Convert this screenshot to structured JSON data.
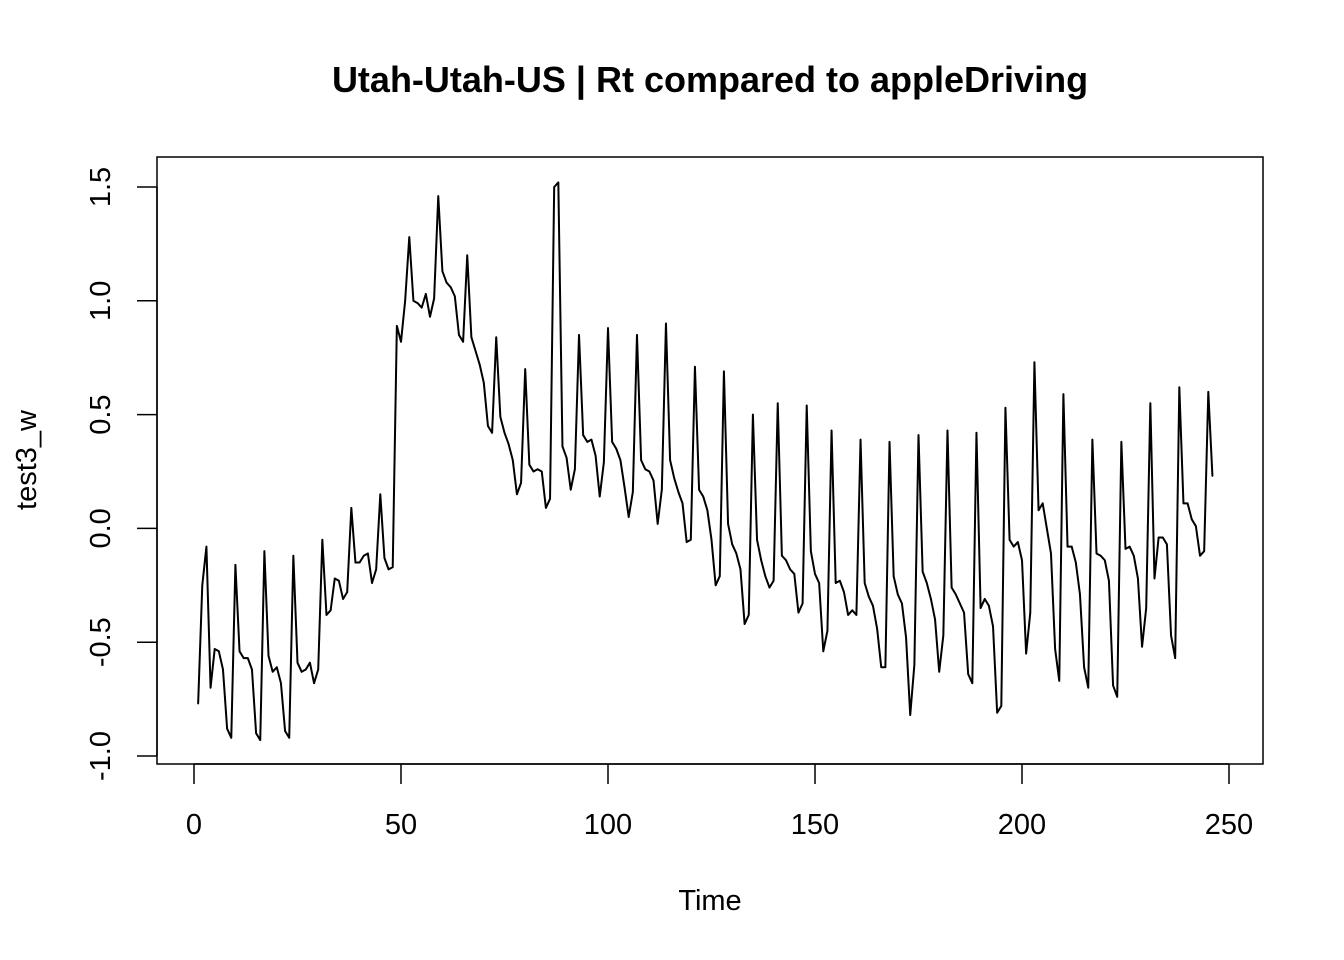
{
  "chart_data": {
    "type": "line",
    "title": "Utah-Utah-US | Rt compared to appleDriving",
    "xlabel": "Time",
    "ylabel": "test3_w",
    "xlim": [
      0,
      250
    ],
    "ylim": [
      -1.0,
      1.5
    ],
    "x_ticks": [
      0,
      50,
      100,
      150,
      200,
      250
    ],
    "x_tick_labels": [
      "0",
      "50",
      "100",
      "150",
      "200",
      "250"
    ],
    "y_ticks": [
      -1.0,
      -0.5,
      0.0,
      0.5,
      1.0,
      1.5
    ],
    "y_tick_labels": [
      "-1.0",
      "-0.5",
      "0.0",
      "0.5",
      "1.0",
      "1.5"
    ],
    "grid": false,
    "series": [
      {
        "name": "test3_w",
        "color": "#000000",
        "x_start": 1,
        "values": [
          -0.77,
          -0.25,
          -0.08,
          -0.7,
          -0.53,
          -0.54,
          -0.62,
          -0.88,
          -0.92,
          -0.16,
          -0.54,
          -0.57,
          -0.57,
          -0.62,
          -0.9,
          -0.93,
          -0.1,
          -0.56,
          -0.63,
          -0.61,
          -0.68,
          -0.89,
          -0.92,
          -0.12,
          -0.59,
          -0.63,
          -0.62,
          -0.59,
          -0.68,
          -0.62,
          -0.05,
          -0.38,
          -0.36,
          -0.22,
          -0.23,
          -0.31,
          -0.28,
          0.09,
          -0.15,
          -0.15,
          -0.12,
          -0.11,
          -0.24,
          -0.18,
          0.15,
          -0.13,
          -0.18,
          -0.17,
          0.89,
          0.82,
          1.0,
          1.28,
          1.0,
          0.99,
          0.97,
          1.03,
          0.93,
          1.01,
          1.46,
          1.13,
          1.08,
          1.06,
          1.02,
          0.85,
          0.82,
          1.2,
          0.84,
          0.78,
          0.72,
          0.64,
          0.45,
          0.42,
          0.84,
          0.49,
          0.42,
          0.37,
          0.3,
          0.15,
          0.2,
          0.7,
          0.28,
          0.25,
          0.26,
          0.25,
          0.09,
          0.13,
          1.5,
          1.52,
          0.36,
          0.31,
          0.17,
          0.26,
          0.85,
          0.41,
          0.38,
          0.39,
          0.32,
          0.14,
          0.29,
          0.88,
          0.38,
          0.35,
          0.3,
          0.18,
          0.05,
          0.16,
          0.85,
          0.3,
          0.26,
          0.25,
          0.21,
          0.02,
          0.17,
          0.9,
          0.3,
          0.22,
          0.16,
          0.11,
          -0.06,
          -0.05,
          0.71,
          0.17,
          0.14,
          0.08,
          -0.05,
          -0.25,
          -0.21,
          0.69,
          0.02,
          -0.07,
          -0.11,
          -0.18,
          -0.42,
          -0.38,
          0.5,
          -0.05,
          -0.14,
          -0.21,
          -0.26,
          -0.23,
          0.55,
          -0.12,
          -0.14,
          -0.18,
          -0.2,
          -0.37,
          -0.33,
          0.54,
          -0.1,
          -0.2,
          -0.24,
          -0.54,
          -0.45,
          0.43,
          -0.24,
          -0.23,
          -0.28,
          -0.38,
          -0.36,
          -0.38,
          0.39,
          -0.24,
          -0.3,
          -0.34,
          -0.44,
          -0.61,
          -0.61,
          0.38,
          -0.21,
          -0.29,
          -0.33,
          -0.48,
          -0.82,
          -0.6,
          0.41,
          -0.19,
          -0.24,
          -0.31,
          -0.4,
          -0.63,
          -0.47,
          0.43,
          -0.26,
          -0.29,
          -0.33,
          -0.37,
          -0.64,
          -0.68,
          0.42,
          -0.35,
          -0.31,
          -0.34,
          -0.43,
          -0.81,
          -0.78,
          0.53,
          -0.05,
          -0.08,
          -0.06,
          -0.14,
          -0.55,
          -0.37,
          0.73,
          0.08,
          0.11,
          0.0,
          -0.11,
          -0.53,
          -0.67,
          0.59,
          -0.08,
          -0.08,
          -0.15,
          -0.29,
          -0.61,
          -0.7,
          0.39,
          -0.11,
          -0.12,
          -0.14,
          -0.23,
          -0.69,
          -0.74,
          0.38,
          -0.09,
          -0.08,
          -0.12,
          -0.22,
          -0.52,
          -0.35,
          0.55,
          -0.22,
          -0.04,
          -0.04,
          -0.07,
          -0.47,
          -0.57,
          0.62,
          0.11,
          0.11,
          0.04,
          0.01,
          -0.12,
          -0.1,
          0.6,
          0.23
        ]
      }
    ]
  }
}
